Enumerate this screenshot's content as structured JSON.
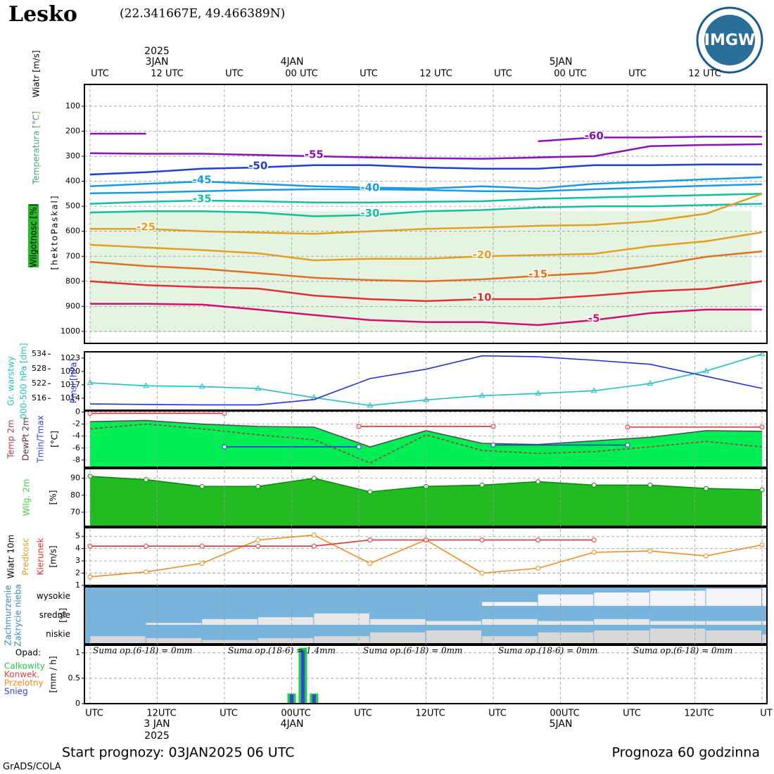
{
  "header": {
    "title": "Lesko",
    "coordinates": "(22.341667E, 49.466389N)",
    "logo": "IMGW",
    "top_dates": [
      "2025",
      "3JAN",
      "4JAN",
      "5JAN"
    ],
    "bottom_dates": [
      "3 JAN",
      "2025",
      "4JAN",
      "5JAN"
    ]
  },
  "footer": {
    "start": "Start prognozy: 03JAN2025 06 UTC",
    "length": "Prognoza 60 godzinna",
    "credit": "GrADS/COLA"
  },
  "chart_data": [
    {
      "type": "line",
      "labels": [
        "Wiatr [m/s]",
        "Temperatura [°C]",
        "Wilgotnosc [%]",
        "[hektoPaskal]"
      ],
      "xlim": [
        0,
        60
      ],
      "ylim": [
        1048,
        13
      ],
      "yticks": [
        100,
        200,
        300,
        400,
        500,
        600,
        700,
        800,
        900,
        1000
      ],
      "grid": true,
      "xticks": [
        {
          "value": 0,
          "label": "UTC"
        },
        {
          "value": 6,
          "label": "12 UTC"
        },
        {
          "value": 12,
          "label": "UTC"
        },
        {
          "value": 18,
          "label": "00 UTC"
        },
        {
          "value": 24,
          "label": "UTC"
        },
        {
          "value": 30,
          "label": "12 UTC"
        },
        {
          "value": 36,
          "label": "UTC"
        },
        {
          "value": 42,
          "label": "00 UTC"
        },
        {
          "value": 48,
          "label": "UTC"
        },
        {
          "value": 54,
          "label": "12 UTC"
        }
      ],
      "x": [
        0,
        5,
        10,
        15,
        20,
        25,
        30,
        35,
        40,
        45,
        50,
        55,
        60
      ],
      "series": [
        {
          "name": "-60",
          "color": "#8a10b8",
          "values": [
            210,
            210,
            null,
            null,
            null,
            null,
            null,
            null,
            240,
            225,
            225,
            222,
            222
          ]
        },
        {
          "name": "-55",
          "color": "#8a10b8",
          "values": [
            288,
            290,
            290,
            295,
            300,
            305,
            308,
            310,
            305,
            300,
            260,
            255,
            252
          ]
        },
        {
          "name": "-50",
          "color": "#2040d0",
          "values": [
            373,
            364,
            350,
            345,
            336,
            336,
            345,
            350,
            350,
            336,
            336,
            333,
            333
          ]
        },
        {
          "name": "-45",
          "color": "#1a9ae0",
          "values": [
            420,
            410,
            401,
            410,
            420,
            425,
            429,
            420,
            429,
            410,
            401,
            392,
            384
          ]
        },
        {
          "name": "-40",
          "color": "#1a9ae0",
          "values": [
            448,
            445,
            440,
            435,
            432,
            432,
            435,
            440,
            440,
            432,
            425,
            418,
            412
          ]
        },
        {
          "name": "-35",
          "color": "#10c0a0",
          "values": [
            490,
            482,
            477,
            480,
            485,
            485,
            482,
            480,
            470,
            465,
            460,
            455,
            450
          ]
        },
        {
          "name": "-30",
          "color": "#10c0a0",
          "values": [
            525,
            520,
            520,
            525,
            540,
            535,
            520,
            515,
            505,
            500,
            500,
            495,
            490
          ]
        },
        {
          "name": "-25",
          "color": "#e0a020",
          "values": [
            590,
            590,
            600,
            605,
            610,
            600,
            590,
            585,
            578,
            575,
            560,
            530,
            450
          ]
        },
        {
          "name": "-20",
          "color": "#e0a020",
          "values": [
            654,
            665,
            675,
            688,
            716,
            710,
            710,
            700,
            695,
            690,
            660,
            640,
            604
          ]
        },
        {
          "name": "-15",
          "color": "#e07020",
          "values": [
            722,
            739,
            750,
            767,
            786,
            795,
            800,
            792,
            778,
            767,
            739,
            702,
            680
          ]
        },
        {
          "name": "-10",
          "color": "#e03030",
          "values": [
            800,
            815,
            823,
            829,
            857,
            871,
            879,
            871,
            871,
            857,
            840,
            830,
            800
          ]
        },
        {
          "name": "-5",
          "color": "#d01070",
          "values": [
            890,
            890,
            893,
            913,
            935,
            955,
            963,
            963,
            975,
            955,
            927,
            913,
            913
          ]
        }
      ]
    },
    {
      "type": "line",
      "labels": [
        "Gr. warstwy",
        "000-500 hPa [dm]",
        "Pmsl [hPa]"
      ],
      "xlim": [
        0,
        60
      ],
      "ylim": [
        511.2,
        534.9
      ],
      "yticks": [
        516,
        522,
        528,
        534
      ],
      "y2lim": [
        1011.3,
        1024.4
      ],
      "y2ticks": [
        1014,
        1017,
        1020,
        1023
      ],
      "x": [
        0,
        5,
        10,
        15,
        20,
        25,
        30,
        35,
        40,
        45,
        50,
        55,
        60
      ],
      "series": [
        {
          "color": "#20c0c0",
          "marker": "triangle",
          "values": [
            522.3,
            521.1,
            520.8,
            520,
            516.3,
            513.1,
            515.4,
            517.1,
            518,
            519.1,
            522,
            527.1,
            534
          ]
        },
        {
          "color": "#2233cc",
          "axis": "y2",
          "values": [
            1012.7,
            1012.6,
            1012.5,
            1012.5,
            1013.7,
            1018.4,
            1020.5,
            1023.5,
            1023.3,
            1022.5,
            1021.6,
            1018.9,
            1016.2
          ]
        }
      ]
    },
    {
      "type": "line",
      "labels": [
        "Temp 2m",
        "DewPt 2m",
        "Tmin/Tmax",
        "[°C]"
      ],
      "xlim": [
        0,
        60
      ],
      "ylim": [
        -9.2,
        0.2
      ],
      "yticks": [
        0,
        -2,
        -4,
        -6,
        -8
      ],
      "grid": true,
      "x": [
        0,
        5,
        10,
        15,
        20,
        25,
        30,
        35,
        40,
        45,
        50,
        55,
        60
      ],
      "series": [
        {
          "color": "#505050",
          "fill": "#00ee55",
          "values": [
            -1.6,
            -1.4,
            -2,
            -2.4,
            -2.5,
            -5.8,
            -3.1,
            -5.2,
            -5.4,
            -4.8,
            -4.2,
            -3.1,
            -3.2
          ]
        },
        {
          "color": "#a04040",
          "dash": true,
          "values": [
            -2.8,
            -2,
            -2.8,
            -3.8,
            -4.6,
            -8.5,
            -3.8,
            -6.4,
            -6.9,
            -6.6,
            -5.8,
            -4.9,
            -5.8
          ]
        },
        {
          "color": "#e03030",
          "marker": "circle",
          "x": [
            0,
            12,
            18,
            24,
            36,
            42,
            48,
            60
          ],
          "values": [
            -0.2,
            -0.2,
            null,
            -2.4,
            -2.4,
            null,
            -2.5,
            -2.5
          ]
        },
        {
          "color": "#2040d0",
          "marker": "circle",
          "x": [
            12,
            24,
            30,
            36,
            48
          ],
          "values": [
            -5.8,
            -5.8,
            null,
            -5.5,
            -5.5
          ]
        }
      ]
    },
    {
      "type": "line",
      "labels": [
        "Wilg. 2m",
        "[%]"
      ],
      "xlim": [
        0,
        60
      ],
      "ylim": [
        61.7,
        95.7
      ],
      "yticks": [
        70,
        80,
        90
      ],
      "grid": true,
      "x": [
        0,
        5,
        10,
        15,
        20,
        25,
        30,
        35,
        40,
        45,
        50,
        55,
        60
      ],
      "series": [
        {
          "color": "#118811",
          "fill": "#22bb22",
          "marker": "circle",
          "values": [
            91.2,
            89.2,
            85.2,
            85.2,
            90,
            82,
            85.2,
            86,
            88,
            86,
            86,
            84,
            83.2
          ]
        }
      ]
    },
    {
      "type": "line",
      "labels": [
        "Wiatr 10m",
        "Predkosc",
        "Kierunek",
        "[m/s]"
      ],
      "xlim": [
        0,
        60
      ],
      "ylim": [
        1,
        5.7
      ],
      "yticks": [
        1,
        2,
        3,
        4,
        5
      ],
      "grid": true,
      "x": [
        0,
        5,
        10,
        15,
        20,
        25,
        30,
        35,
        40,
        45,
        50,
        55,
        60
      ],
      "series": [
        {
          "color": "#f08c20",
          "marker": "circle",
          "values": [
            1.7,
            2.1,
            2.8,
            4.7,
            5.1,
            2.8,
            4.7,
            2,
            2.4,
            3.7,
            3.8,
            3.4,
            4.3
          ]
        },
        {
          "color": "#e03030",
          "marker": "circle",
          "values": [
            4.2,
            4.2,
            4.2,
            4.2,
            4.2,
            4.7,
            4.7,
            4.7,
            4.7,
            4.7,
            null,
            null,
            null
          ]
        }
      ]
    },
    {
      "type": "bar",
      "bands": true,
      "labels": [
        "Zachmurzenie",
        "Zakrycie nieba",
        "[%]"
      ],
      "xlim": [
        0,
        60
      ],
      "background": "#78b4dc",
      "x": [
        0,
        5,
        10,
        15,
        20,
        25,
        30,
        35,
        40,
        45,
        50,
        55,
        60
      ],
      "series": [
        {
          "name": "wysokie",
          "color": "#f4f4f8",
          "values": [
            0,
            0,
            0,
            0,
            0,
            0,
            0,
            20,
            60,
            70,
            80,
            90,
            95
          ]
        },
        {
          "name": "srednie",
          "color": "#e8e8e8",
          "values": [
            0,
            10,
            30,
            40,
            60,
            30,
            20,
            30,
            20,
            30,
            20,
            20,
            20
          ]
        },
        {
          "name": "niskie",
          "color": "#d8d8d8",
          "values": [
            40,
            30,
            20,
            30,
            40,
            60,
            70,
            40,
            60,
            70,
            80,
            70,
            50
          ]
        }
      ]
    },
    {
      "type": "bar",
      "labels": [
        "Opad:",
        "[mm / h]"
      ],
      "xlim": [
        0,
        60
      ],
      "ylim": [
        0,
        1.15
      ],
      "yticks": [
        0,
        0.5,
        1
      ],
      "grid": true,
      "sums": [
        "Suma op.(6-18) = 0mm",
        "Suma op.(18-6) = 1.4mm",
        "Suma op.(6-18) = 0mm",
        "Suma op.(18-6) = 0mm",
        "Suma op.(6-18) = 0mm"
      ],
      "legend": [
        {
          "label": "Calkowity",
          "color": "#22cc44"
        },
        {
          "label": "Konwek.",
          "color": "#e04040"
        },
        {
          "label": "Przelotny",
          "color": "#f08c20"
        },
        {
          "label": "Snieg",
          "color": "#3344dd"
        }
      ],
      "xticks": [
        {
          "value": 0,
          "label": "UTC"
        },
        {
          "value": 6,
          "label": "12UTC"
        },
        {
          "value": 12,
          "label": "UTC"
        },
        {
          "value": 18,
          "label": "00UTC"
        },
        {
          "value": 24,
          "label": "UTC"
        },
        {
          "value": 30,
          "label": "12UTC"
        },
        {
          "value": 36,
          "label": "UTC"
        },
        {
          "value": 42,
          "label": "00UTC"
        },
        {
          "value": 48,
          "label": "UTC"
        },
        {
          "value": 54,
          "label": "12UTC"
        },
        {
          "value": 60,
          "label": "UT"
        }
      ],
      "x": [
        18,
        19,
        20
      ],
      "series": [
        {
          "color": "#22cc44",
          "width": 12,
          "values": [
            0.2,
            1.1,
            0.2
          ]
        },
        {
          "color": "#3344dd",
          "width": 5,
          "values": [
            0.18,
            1.05,
            0.18
          ]
        }
      ]
    }
  ]
}
